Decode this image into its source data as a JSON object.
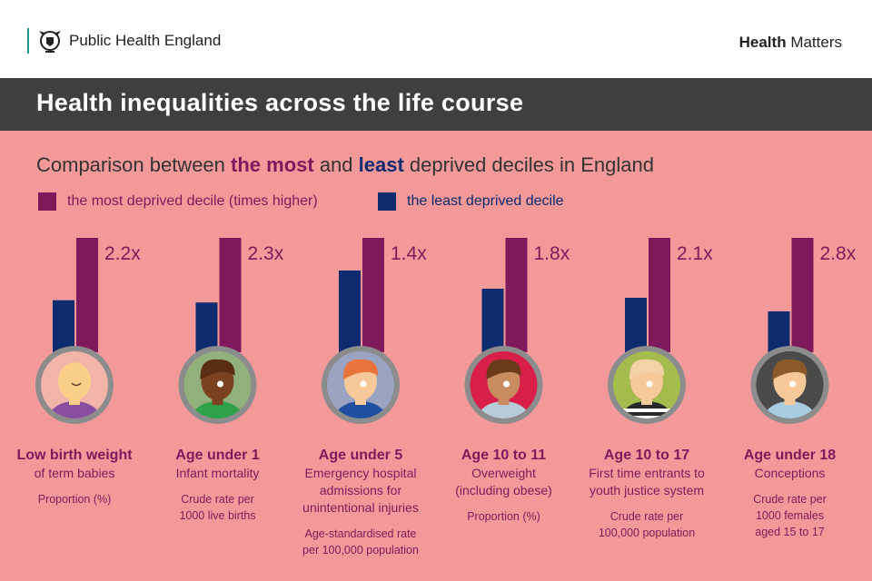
{
  "header": {
    "org": "Public Health England",
    "series_bold": "Health",
    "series_rest": " Matters"
  },
  "title": "Health inequalities across the life course",
  "subtitle": {
    "pre": "Comparison between ",
    "most": "the most",
    "mid": " and ",
    "least": "least",
    "post": " deprived deciles in England"
  },
  "legend": {
    "most": "the most deprived decile (times higher)",
    "least": "the least deprived decile"
  },
  "colors": {
    "most": "#7e1a5c",
    "least": "#0d2b6e",
    "background": "#f4999a",
    "title_bar": "#3f3f3f"
  },
  "chart_data": {
    "type": "bar",
    "series": [
      {
        "name": "the least deprived decile",
        "values": [
          1,
          1,
          1,
          1,
          1,
          1
        ]
      },
      {
        "name": "the most deprived decile (times higher)",
        "values": [
          2.2,
          2.3,
          1.4,
          1.8,
          2.1,
          2.8
        ]
      }
    ],
    "ratio_labels": [
      "2.2x",
      "2.3x",
      "1.4x",
      "1.8x",
      "2.1x",
      "2.8x"
    ],
    "categories": [
      {
        "heading": "Low birth weight",
        "desc": [
          "of term babies"
        ],
        "unit": [
          "Proportion (%)"
        ],
        "icon": "baby-icon",
        "circle": "#f2b3a8",
        "skin": "#f9cf8a",
        "hair": "#f9cf8a",
        "shirt": "#8a4ea1"
      },
      {
        "heading": "Age under 1",
        "desc": [
          "Infant mortality"
        ],
        "unit": [
          "Crude rate per",
          "1000 live births"
        ],
        "icon": "infant-icon",
        "circle": "#92b07c",
        "skin": "#7a4220",
        "hair": "#5a2e12",
        "shirt": "#2fa14a"
      },
      {
        "heading": "Age under 5",
        "desc": [
          "Emergency hospital",
          "admissions for",
          "unintentional injuries"
        ],
        "unit": [
          "Age-standardised rate",
          "per 100,000 population"
        ],
        "icon": "child-icon",
        "circle": "#9aa4c2",
        "skin": "#f7c99a",
        "hair": "#e8743c",
        "shirt": "#1f4f9e"
      },
      {
        "heading": "Age 10 to 11",
        "desc": [
          "Overweight",
          "(including obese)"
        ],
        "unit": [
          "Proportion (%)"
        ],
        "icon": "preteen-icon",
        "circle": "#d81f4a",
        "skin": "#c98b60",
        "hair": "#6b3b1b",
        "shirt": "#b6cdd9"
      },
      {
        "heading": "Age 10 to 17",
        "desc": [
          "First time entrants to",
          "youth justice system"
        ],
        "unit": [
          "Crude rate per",
          "100,000 population"
        ],
        "icon": "teen-icon",
        "circle": "#a4bb4e",
        "skin": "#f7c99a",
        "hair": "#f4d2a8",
        "shirt": "#2b2b2b"
      },
      {
        "heading": "Age under 18",
        "desc": [
          "Conceptions"
        ],
        "unit": [
          "Crude rate per",
          "1000 females",
          "aged 15 to 17"
        ],
        "icon": "young-adult-icon",
        "circle": "#4a4a4a",
        "skin": "#f7c99a",
        "hair": "#8b5a2b",
        "shirt": "#a8cde0"
      }
    ]
  }
}
